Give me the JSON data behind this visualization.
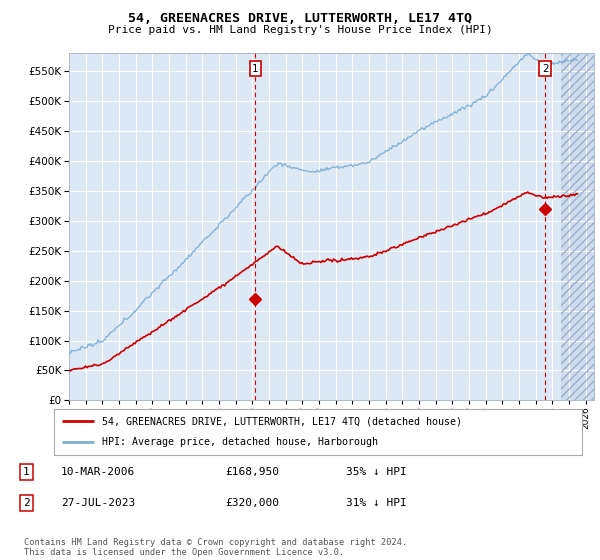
{
  "title": "54, GREENACRES DRIVE, LUTTERWORTH, LE17 4TQ",
  "subtitle": "Price paid vs. HM Land Registry's House Price Index (HPI)",
  "hpi_color": "#7bafd4",
  "property_color": "#cc0000",
  "background_color": "#dde8f5",
  "grid_color": "#ffffff",
  "ylim": [
    0,
    580000
  ],
  "yticks": [
    0,
    50000,
    100000,
    150000,
    200000,
    250000,
    300000,
    350000,
    400000,
    450000,
    500000,
    550000
  ],
  "ytick_labels": [
    "£0",
    "£50K",
    "£100K",
    "£150K",
    "£200K",
    "£250K",
    "£300K",
    "£350K",
    "£400K",
    "£450K",
    "£500K",
    "£550K"
  ],
  "xlim_start": 1995.0,
  "xlim_end": 2026.5,
  "sale1_x": 2006.19,
  "sale1_y": 168950,
  "sale1_label": "1",
  "sale2_x": 2023.57,
  "sale2_y": 320000,
  "sale2_label": "2",
  "hatch_start": 2024.5,
  "legend_line1": "54, GREENACRES DRIVE, LUTTERWORTH, LE17 4TQ (detached house)",
  "legend_line2": "HPI: Average price, detached house, Harborough",
  "table_entries": [
    {
      "num": "1",
      "date": "10-MAR-2006",
      "price": "£168,950",
      "note": "35% ↓ HPI"
    },
    {
      "num": "2",
      "date": "27-JUL-2023",
      "price": "£320,000",
      "note": "31% ↓ HPI"
    }
  ],
  "footer": "Contains HM Land Registry data © Crown copyright and database right 2024.\nThis data is licensed under the Open Government Licence v3.0."
}
